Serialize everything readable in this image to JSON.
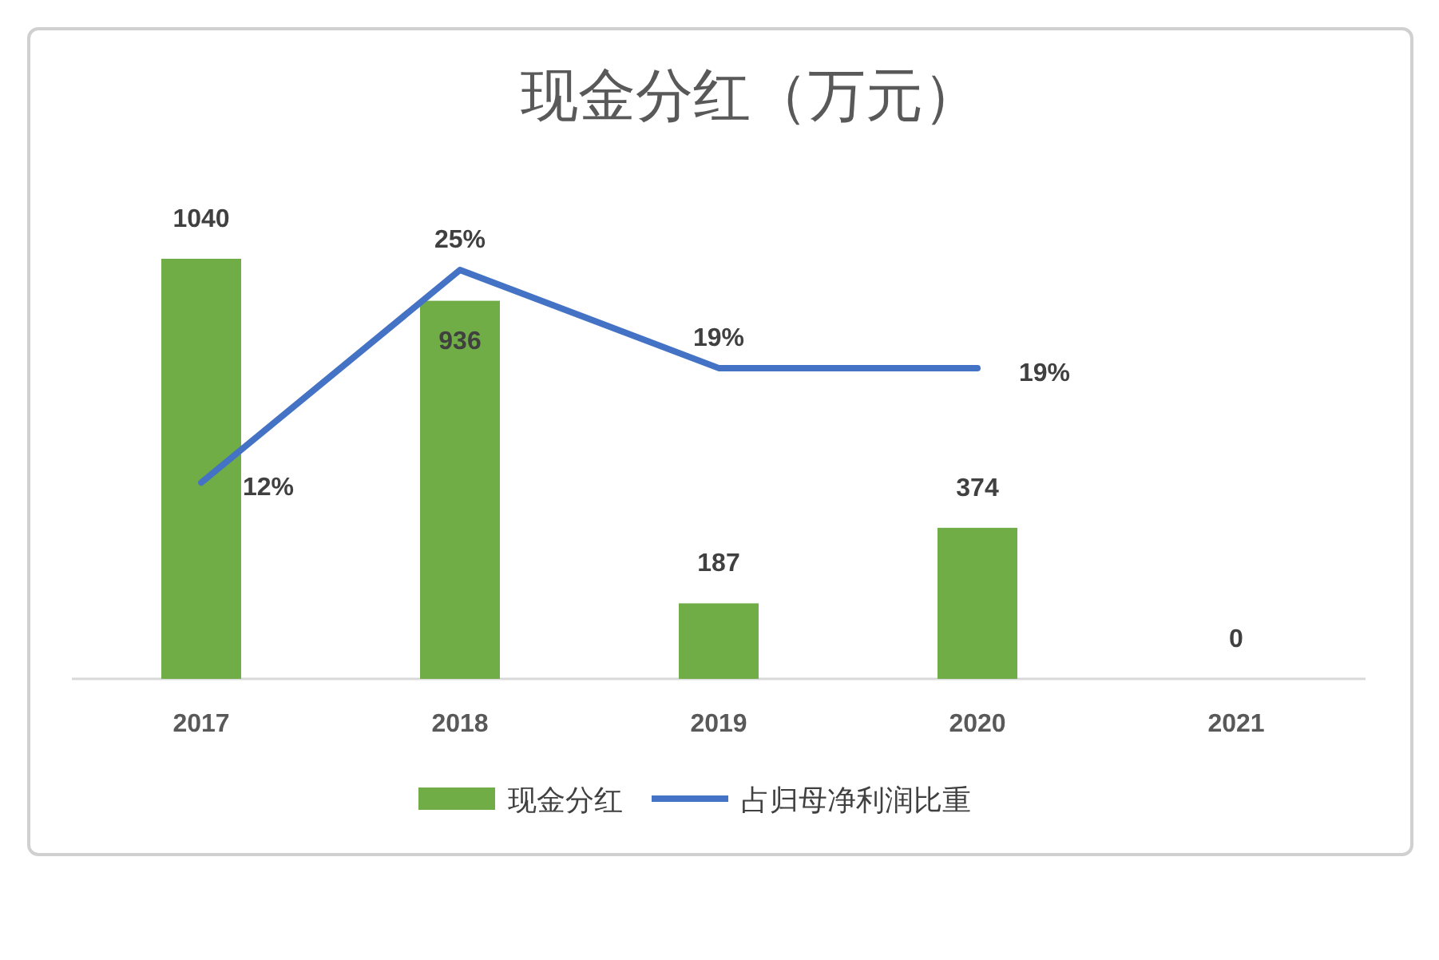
{
  "chart_data": {
    "type": "bar",
    "title": "现金分红（万元）",
    "categories": [
      "2017",
      "2018",
      "2019",
      "2020",
      "2021"
    ],
    "series": [
      {
        "name": "现金分红",
        "color": "#70ad47",
        "values": [
          1040,
          936,
          187,
          374,
          0
        ]
      },
      {
        "name": "占归母净利润比重",
        "type": "line",
        "axis": "y2",
        "color": "#4472c4",
        "values": [
          12,
          25,
          19,
          19,
          null
        ],
        "value_labels": [
          "12%",
          "25%",
          "19%",
          "19%",
          null
        ]
      }
    ],
    "data_labels": true,
    "legend": "bottom",
    "tick_labels": "x",
    "grid": false,
    "marker": "none"
  }
}
